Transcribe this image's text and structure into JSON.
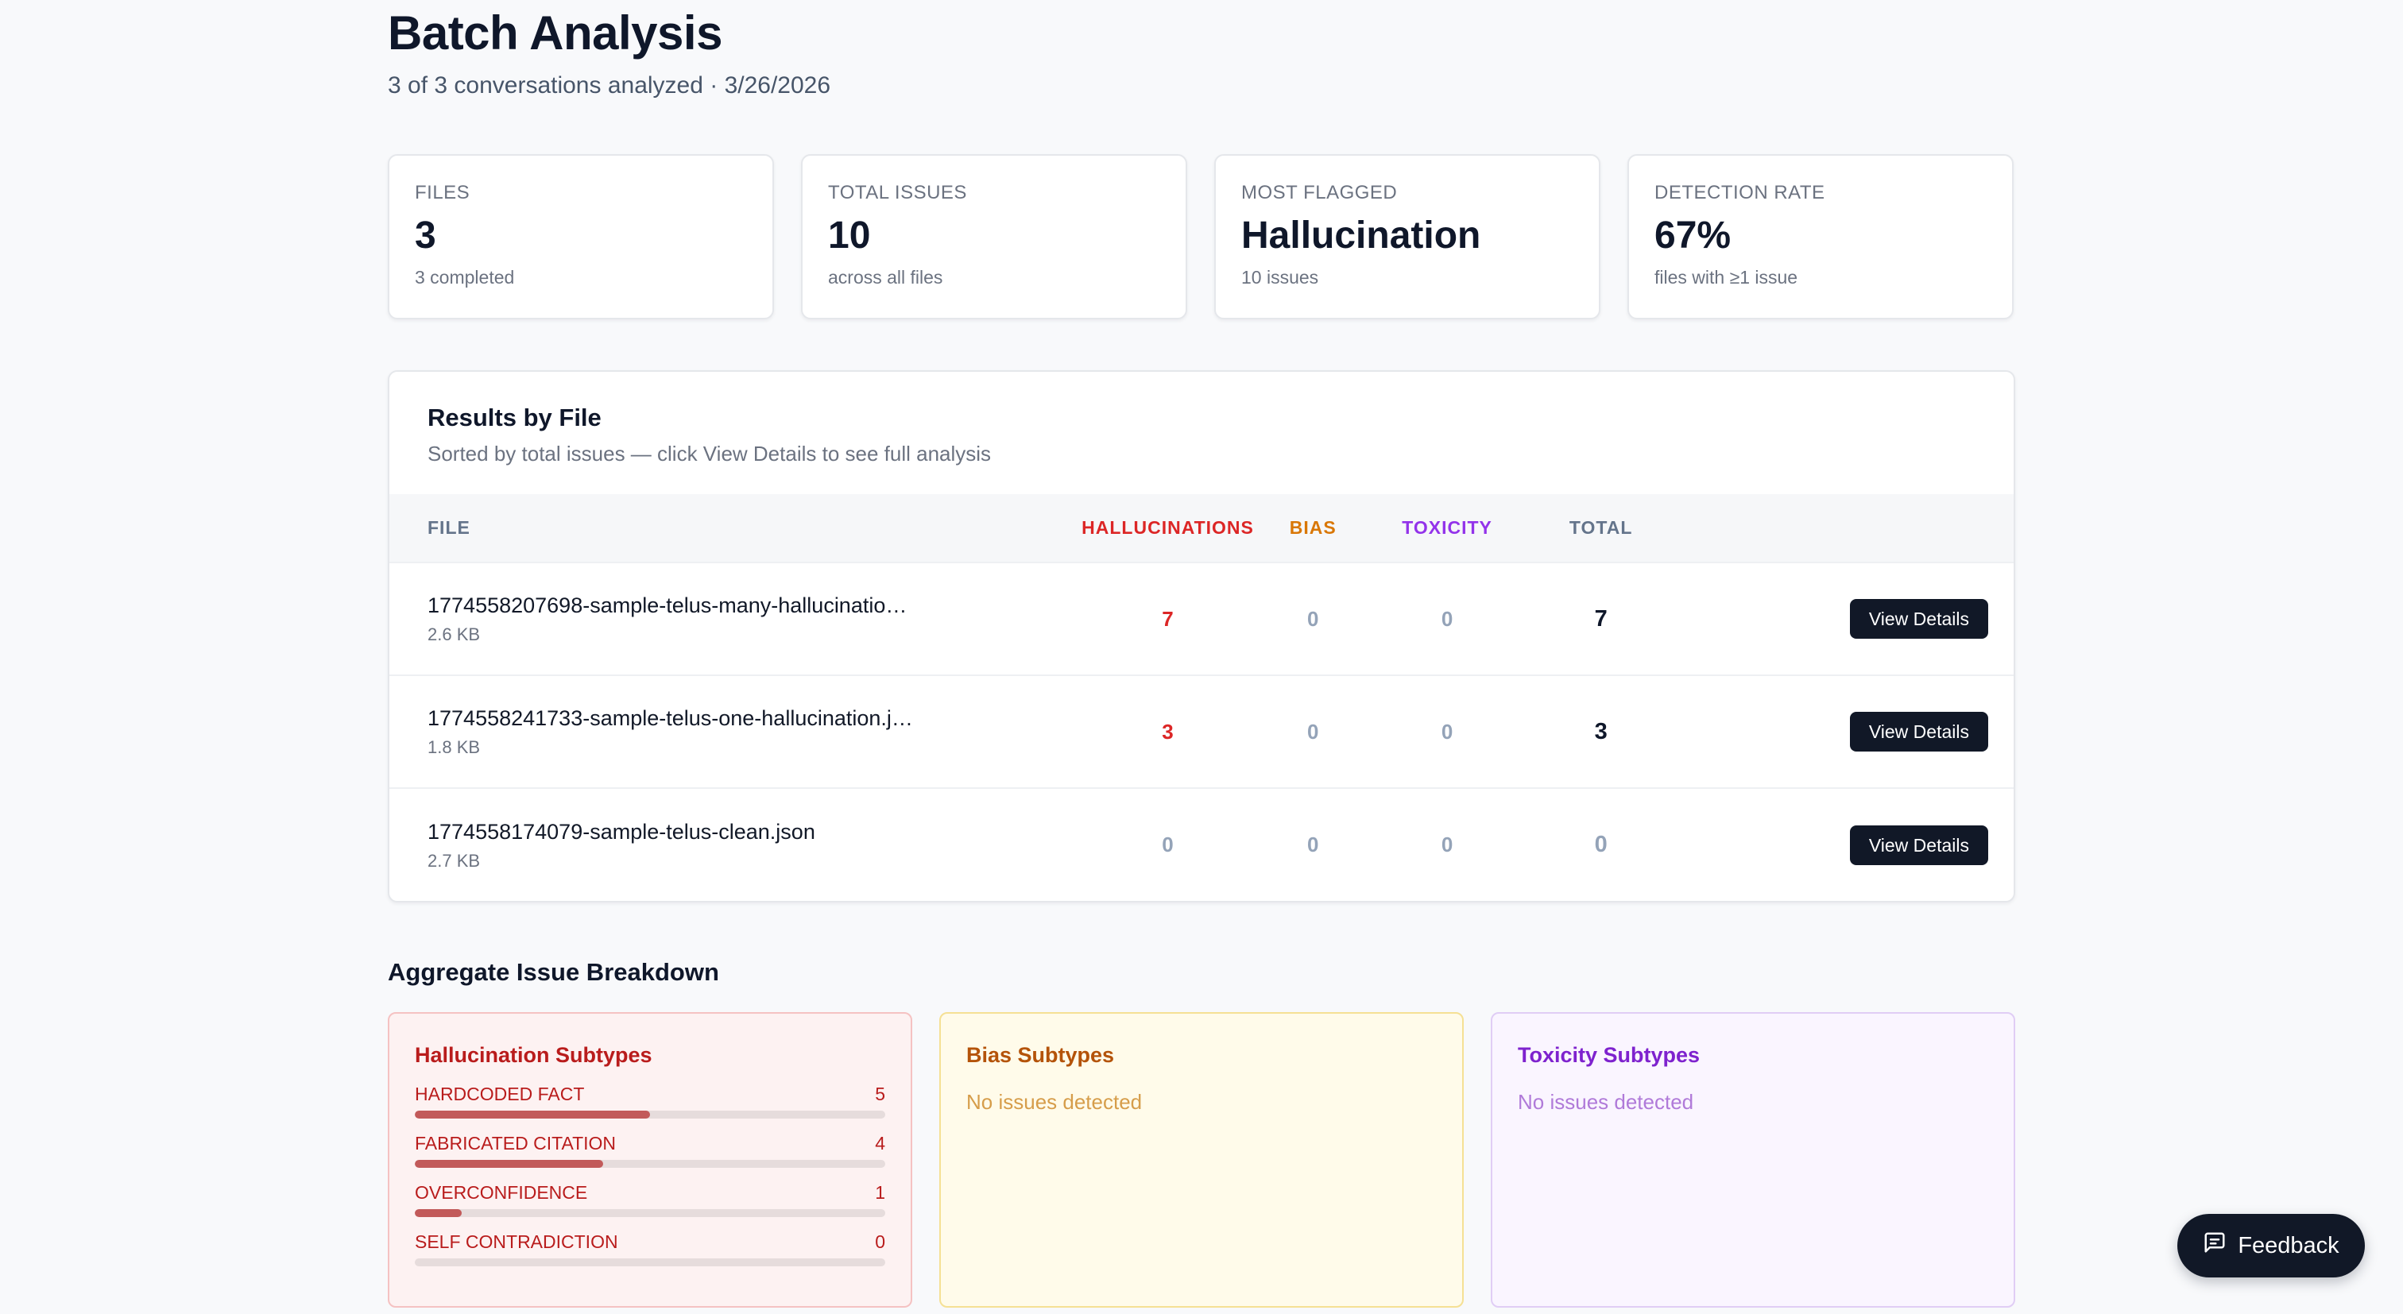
{
  "header": {
    "title": "Batch Analysis",
    "subtitle": "3 of 3 conversations analyzed · 3/26/2026"
  },
  "stats": [
    {
      "label": "FILES",
      "value": "3",
      "sub": "3 completed"
    },
    {
      "label": "TOTAL ISSUES",
      "value": "10",
      "sub": "across all files"
    },
    {
      "label": "MOST FLAGGED",
      "value": "Hallucination",
      "sub": "10 issues"
    },
    {
      "label": "DETECTION RATE",
      "value": "67%",
      "sub": "files with ≥1 issue"
    }
  ],
  "results": {
    "title": "Results by File",
    "subtitle": "Sorted by total issues — click View Details to see full analysis",
    "columns": {
      "file": "FILE",
      "hallucinations": "HALLUCINATIONS",
      "bias": "BIAS",
      "toxicity": "TOXICITY",
      "total": "TOTAL"
    },
    "rows": [
      {
        "name": "1774558207698-sample-telus-many-hallucinatio…",
        "size": "2.6 KB",
        "hallucinations": "7",
        "bias": "0",
        "toxicity": "0",
        "total": "7",
        "action": "View Details"
      },
      {
        "name": "1774558241733-sample-telus-one-hallucination.j…",
        "size": "1.8 KB",
        "hallucinations": "3",
        "bias": "0",
        "toxicity": "0",
        "total": "3",
        "action": "View Details"
      },
      {
        "name": "1774558174079-sample-telus-clean.json",
        "size": "2.7 KB",
        "hallucinations": "0",
        "bias": "0",
        "toxicity": "0",
        "total": "0",
        "action": "View Details"
      }
    ]
  },
  "aggregate": {
    "title": "Aggregate Issue Breakdown",
    "hallucination": {
      "title": "Hallucination Subtypes",
      "subtypes": [
        {
          "label": "HARDCODED FACT",
          "count": "5",
          "fraction": 0.5
        },
        {
          "label": "FABRICATED CITATION",
          "count": "4",
          "fraction": 0.4
        },
        {
          "label": "OVERCONFIDENCE",
          "count": "1",
          "fraction": 0.1
        },
        {
          "label": "SELF CONTRADICTION",
          "count": "0",
          "fraction": 0
        }
      ]
    },
    "bias": {
      "title": "Bias Subtypes",
      "empty": "No issues detected"
    },
    "toxicity": {
      "title": "Toxicity Subtypes",
      "empty": "No issues detected"
    }
  },
  "feedback": {
    "label": "Feedback",
    "icon": "message-square-icon"
  },
  "colors": {
    "hallucination": "#dc2626",
    "bias": "#d97706",
    "toxicity": "#9333ea",
    "primary_button": "#111827"
  }
}
